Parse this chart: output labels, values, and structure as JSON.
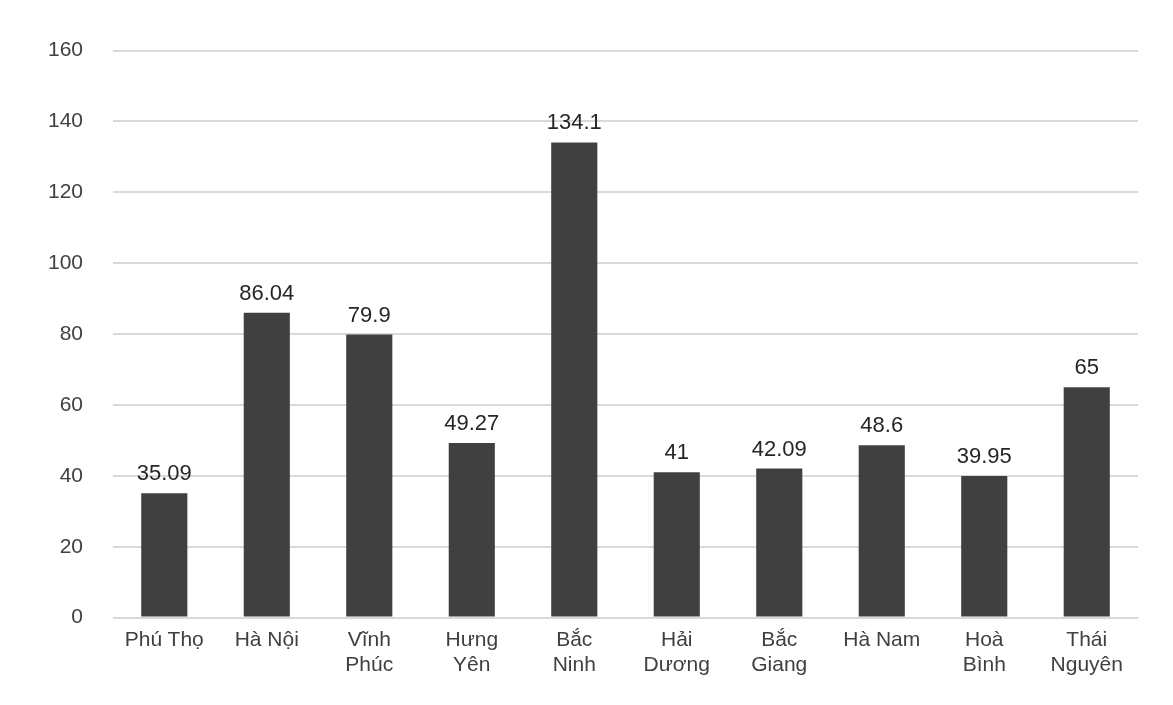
{
  "chart_data": {
    "type": "bar",
    "categories": [
      "Phú Thọ",
      "Hà Nội",
      "Vĩnh Phúc",
      "Hưng Yên",
      "Bắc Ninh",
      "Hải Dương",
      "Bắc Giang",
      "Hà Nam",
      "Hoà Bình",
      "Thái Nguyên"
    ],
    "values": [
      35.09,
      86.04,
      79.9,
      49.27,
      134.1,
      41,
      42.09,
      48.6,
      39.95,
      65
    ],
    "color": "#404040",
    "ylim": [
      0,
      160
    ],
    "yticks": [
      0,
      20,
      40,
      60,
      80,
      100,
      120,
      140,
      160
    ],
    "grid": "y",
    "data_labels": true,
    "legend": false
  }
}
